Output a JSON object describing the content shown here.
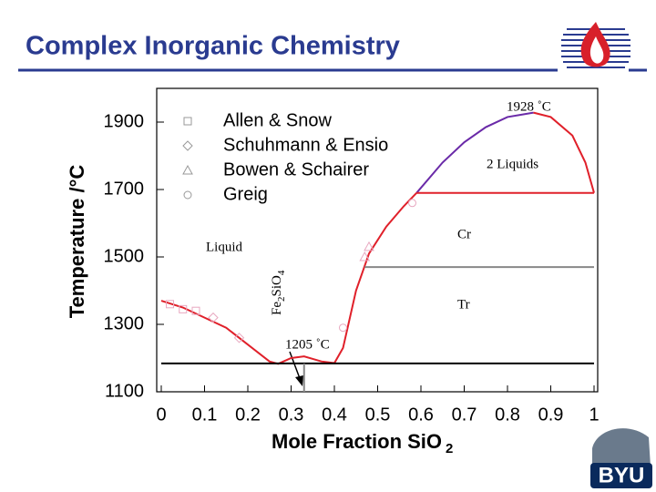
{
  "slide": {
    "title": "Complex Inorganic Chemistry",
    "logo_text": "BYU"
  },
  "chart_data": {
    "type": "line",
    "xlabel": {
      "text": "Mole Fraction SiO",
      "subscript": "2"
    },
    "ylabel": "Temperature /°C",
    "xlim": [
      0,
      1
    ],
    "xticks": [
      0,
      0.1,
      0.2,
      0.3,
      0.4,
      0.5,
      0.6,
      0.7,
      0.8,
      0.9,
      1
    ],
    "ylim": [
      1100,
      2000
    ],
    "yticks": [
      1100,
      1300,
      1500,
      1700,
      1900
    ],
    "series": [
      {
        "color": "#e0202a",
        "x": [
          0,
          0.05,
          0.1,
          0.15,
          0.2,
          0.25,
          0.27,
          0.3,
          0.33,
          0.37,
          0.4,
          0.42,
          0.45,
          0.48,
          0.52,
          0.56,
          0.59
        ],
        "values": [
          1370,
          1350,
          1320,
          1290,
          1240,
          1190,
          1183,
          1200,
          1205,
          1190,
          1185,
          1230,
          1400,
          1510,
          1590,
          1650,
          1690
        ]
      },
      {
        "color": "#6a2aa8",
        "x": [
          0.59,
          0.65,
          0.7,
          0.75,
          0.8,
          0.86
        ],
        "values": [
          1690,
          1780,
          1840,
          1885,
          1915,
          1928
        ]
      },
      {
        "color": "#e0202a",
        "x": [
          0.86,
          0.9,
          0.95,
          0.98,
          1
        ],
        "values": [
          1928,
          1915,
          1860,
          1780,
          1690
        ]
      },
      {
        "color": "#e0202a",
        "x": [
          0.59,
          1
        ],
        "values": [
          1690,
          1690
        ]
      },
      {
        "color": "#888888",
        "x": [
          0.47,
          1
        ],
        "values": [
          1470,
          1470
        ]
      },
      {
        "color": "#000000",
        "x": [
          0,
          1
        ],
        "values": [
          1184,
          1184
        ]
      },
      {
        "color": "#888888",
        "x": [
          0.33,
          0.33
        ],
        "values": [
          1100,
          1184
        ]
      }
    ],
    "points": [
      {
        "name": "Allen & Snow",
        "marker": "square",
        "color": "#e8a8c0",
        "x": [
          0.02,
          0.05,
          0.08
        ],
        "values": [
          1360,
          1345,
          1340
        ]
      },
      {
        "name": "Schuhmann & Ensio",
        "marker": "diamond",
        "color": "#e8a8c0",
        "x": [
          0.12,
          0.18
        ],
        "values": [
          1320,
          1260
        ]
      },
      {
        "name": "Bowen & Schairer",
        "marker": "triangle",
        "color": "#e8a8c0",
        "x": [
          0.47,
          0.48
        ],
        "values": [
          1500,
          1530
        ]
      },
      {
        "name": "Greig",
        "marker": "circle",
        "color": "#e8a8c0",
        "x": [
          0.42,
          0.58
        ],
        "values": [
          1290,
          1660
        ]
      }
    ],
    "annotations": [
      "1928 ˚C",
      "2 Liquids",
      "Liquid",
      "Cr",
      "Tr",
      "1205 ˚C"
    ],
    "compound": [
      "Fe",
      "2",
      "SiO",
      "4"
    ]
  }
}
